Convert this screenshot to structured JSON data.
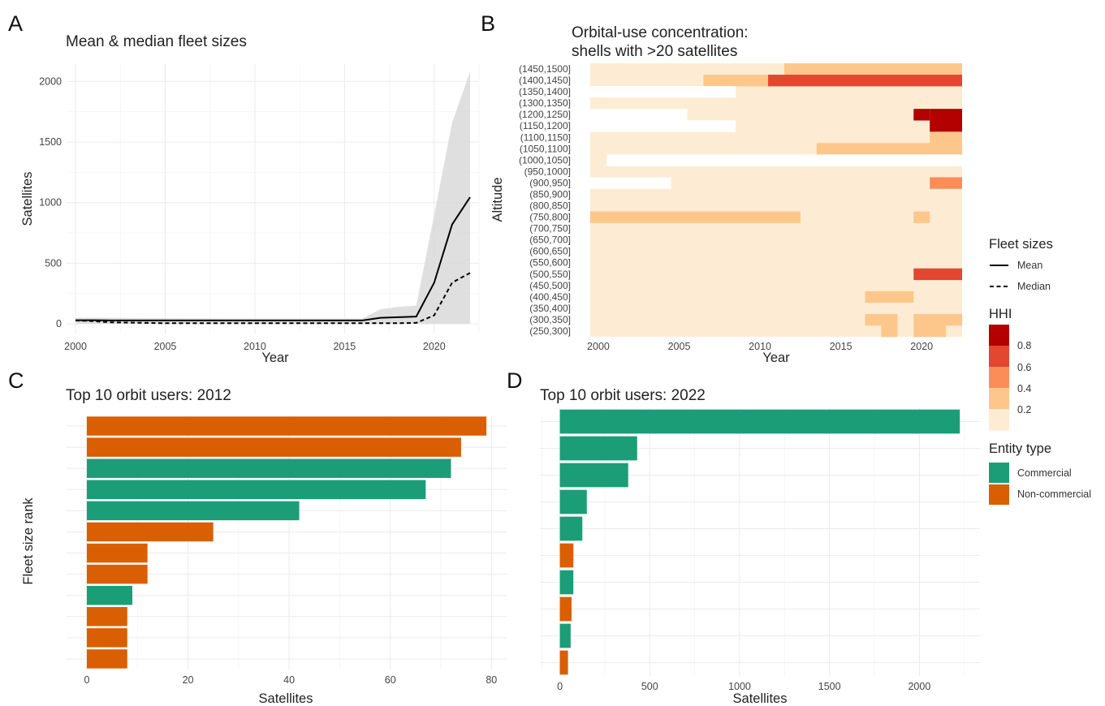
{
  "panels": {
    "A": {
      "letter": "A"
    },
    "B": {
      "letter": "B"
    },
    "C": {
      "letter": "C"
    },
    "D": {
      "letter": "D"
    }
  },
  "chart_data": [
    {
      "id": "A",
      "type": "line",
      "title": "Mean & median fleet sizes",
      "xlabel": "Year",
      "ylabel": "Satellites",
      "xlim": [
        1999.5,
        2022.5
      ],
      "ylim": [
        -80,
        2150
      ],
      "xticks": [
        2000,
        2005,
        2010,
        2015,
        2020
      ],
      "yticks": [
        0,
        500,
        1000,
        1500,
        2000
      ],
      "x": [
        2000,
        2001,
        2002,
        2003,
        2004,
        2005,
        2006,
        2007,
        2008,
        2009,
        2010,
        2011,
        2012,
        2013,
        2014,
        2015,
        2016,
        2017,
        2018,
        2019,
        2020,
        2021,
        2022
      ],
      "series": [
        {
          "name": "Mean",
          "linetype": "solid",
          "values": [
            30,
            30,
            28,
            28,
            28,
            28,
            28,
            28,
            28,
            28,
            28,
            28,
            28,
            28,
            28,
            28,
            28,
            50,
            55,
            60,
            340,
            820,
            1045
          ]
        },
        {
          "name": "Median",
          "linetype": "dashed",
          "values": [
            28,
            22,
            12,
            10,
            8,
            5,
            5,
            5,
            5,
            5,
            5,
            5,
            5,
            5,
            5,
            5,
            5,
            5,
            5,
            8,
            70,
            340,
            420
          ]
        }
      ],
      "band": {
        "upper": [
          50,
          50,
          50,
          48,
          46,
          46,
          45,
          45,
          44,
          44,
          44,
          44,
          44,
          44,
          44,
          44,
          44,
          120,
          140,
          150,
          900,
          1660,
          2080
        ],
        "lower": [
          0,
          0,
          0,
          0,
          0,
          0,
          0,
          0,
          0,
          0,
          0,
          0,
          0,
          0,
          0,
          0,
          0,
          0,
          0,
          0,
          0,
          0,
          0
        ]
      },
      "legend": {
        "title": "Fleet sizes",
        "entries": [
          "Mean",
          "Median"
        ]
      }
    },
    {
      "id": "B",
      "type": "heatmap",
      "title_line1": "Orbital-use concentration:",
      "title_line2": "shells with >20 satellites",
      "xlabel": "Year",
      "ylabel": "Altitude",
      "xticks": [
        2000,
        2005,
        2010,
        2015,
        2020
      ],
      "xrange": [
        1999.5,
        2022.5
      ],
      "rows": [
        "(1450,1500]",
        "(1400,1450]",
        "(1350,1400]",
        "(1300,1350]",
        "(1200,1250]",
        "(1150,1200]",
        "(1100,1150]",
        "(1050,1100]",
        "(1000,1050]",
        "(950,1000]",
        "(900,950]",
        "(850,900]",
        "(800,850]",
        "(750,800]",
        "(700,750]",
        "(650,700]",
        "(600,650]",
        "(550,600]",
        "(500,550]",
        "(450,500]",
        "(400,450]",
        "(350,400]",
        "(300,350]",
        "(250,300]"
      ],
      "base_value": 0.1,
      "cells": [
        {
          "row": 0,
          "from": 2000,
          "to": 2011,
          "value": 0.1
        },
        {
          "row": 0,
          "from": 2012,
          "to": 2022,
          "value": 0.3
        },
        {
          "row": 1,
          "from": 2000,
          "to": 2006,
          "value": 0.1
        },
        {
          "row": 1,
          "from": 2007,
          "to": 2010,
          "value": 0.3
        },
        {
          "row": 1,
          "from": 2011,
          "to": 2022,
          "value": 0.5
        },
        {
          "row": 2,
          "from": 2000,
          "to": 2008,
          "value": null
        },
        {
          "row": 3,
          "from": 2000,
          "to": 2000,
          "value": 0.1
        },
        {
          "row": 4,
          "from": 2000,
          "to": 2005,
          "value": null
        },
        {
          "row": 4,
          "from": 2020,
          "to": 2020,
          "value": 0.9
        },
        {
          "row": 4,
          "from": 2021,
          "to": 2022,
          "value": 0.9
        },
        {
          "row": 5,
          "from": 2000,
          "to": 2008,
          "value": null
        },
        {
          "row": 5,
          "from": 2021,
          "to": 2022,
          "value": 0.9
        },
        {
          "row": 6,
          "from": 2021,
          "to": 2022,
          "value": 0.2
        },
        {
          "row": 7,
          "from": 2014,
          "to": 2022,
          "value": 0.2
        },
        {
          "row": 8,
          "from": 2001,
          "to": 2022,
          "value": null
        },
        {
          "row": 8,
          "from": 2000,
          "to": 2000,
          "value": 0.1
        },
        {
          "row": 10,
          "from": 2000,
          "to": 2004,
          "value": null
        },
        {
          "row": 10,
          "from": 2021,
          "to": 2022,
          "value": 0.4
        },
        {
          "row": 13,
          "from": 2000,
          "to": 2012,
          "value": 0.25
        },
        {
          "row": 13,
          "from": 2020,
          "to": 2020,
          "value": 0.25
        },
        {
          "row": 18,
          "from": 2020,
          "to": 2022,
          "value": 0.6
        },
        {
          "row": 20,
          "from": 2017,
          "to": 2019,
          "value": 0.22
        },
        {
          "row": 22,
          "from": 2017,
          "to": 2018,
          "value": 0.22
        },
        {
          "row": 22,
          "from": 2020,
          "to": 2022,
          "value": 0.22
        },
        {
          "row": 23,
          "from": 2018,
          "to": 2018,
          "value": 0.22
        },
        {
          "row": 23,
          "from": 2020,
          "to": 2021,
          "value": 0.22
        }
      ],
      "legend": {
        "title": "HHI",
        "ticks": [
          "0.8",
          "0.6",
          "0.4",
          "0.2"
        ],
        "colors": [
          "#fdecd3",
          "#fdc78b",
          "#fb8d59",
          "#e3472f",
          "#b30000"
        ]
      }
    },
    {
      "id": "C",
      "type": "bar",
      "orientation": "horizontal",
      "title": "Top 10 orbit users: 2012",
      "xlabel": "Satellites",
      "ylabel": "Fleet size rank",
      "xlim": [
        -4,
        83
      ],
      "xticks": [
        0,
        20,
        40,
        60,
        80
      ],
      "bars": [
        {
          "value": 79,
          "type": "Non-commercial"
        },
        {
          "value": 74,
          "type": "Non-commercial"
        },
        {
          "value": 72,
          "type": "Commercial"
        },
        {
          "value": 67,
          "type": "Commercial"
        },
        {
          "value": 42,
          "type": "Commercial"
        },
        {
          "value": 25,
          "type": "Non-commercial"
        },
        {
          "value": 12,
          "type": "Non-commercial"
        },
        {
          "value": 12,
          "type": "Non-commercial"
        },
        {
          "value": 9,
          "type": "Commercial"
        },
        {
          "value": 8,
          "type": "Non-commercial"
        },
        {
          "value": 8,
          "type": "Non-commercial"
        },
        {
          "value": 8,
          "type": "Non-commercial"
        }
      ]
    },
    {
      "id": "D",
      "type": "bar",
      "orientation": "horizontal",
      "title": "Top 10 orbit users: 2022",
      "xlabel": "Satellites",
      "ylabel": "",
      "xlim": [
        -111,
        2337
      ],
      "xticks": [
        0,
        500,
        1000,
        1500,
        2000
      ],
      "bars": [
        {
          "value": 2225,
          "type": "Commercial"
        },
        {
          "value": 430,
          "type": "Commercial"
        },
        {
          "value": 380,
          "type": "Commercial"
        },
        {
          "value": 150,
          "type": "Commercial"
        },
        {
          "value": 125,
          "type": "Commercial"
        },
        {
          "value": 75,
          "type": "Non-commercial"
        },
        {
          "value": 75,
          "type": "Commercial"
        },
        {
          "value": 65,
          "type": "Non-commercial"
        },
        {
          "value": 60,
          "type": "Commercial"
        },
        {
          "value": 45,
          "type": "Non-commercial"
        }
      ],
      "legend": {
        "title": "Entity type",
        "entries": [
          "Commercial",
          "Non-commercial"
        ],
        "colors": {
          "Commercial": "#1b9e77",
          "Non-commercial": "#d95f02"
        }
      }
    }
  ]
}
